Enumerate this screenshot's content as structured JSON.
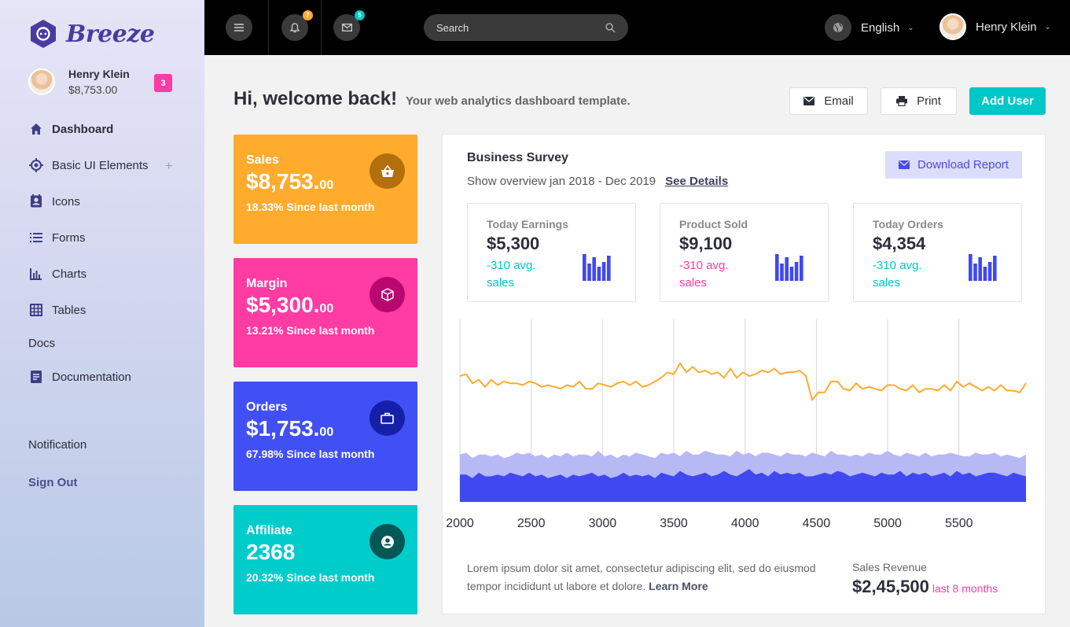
{
  "brand": {
    "name": "Breeze"
  },
  "sidebar": {
    "user": {
      "name": "Henry Klein",
      "balance": "$8,753.00",
      "badge": "3"
    },
    "items": [
      {
        "label": "Dashboard",
        "icon": "home-icon"
      },
      {
        "label": "Basic UI Elements",
        "icon": "crosshair-icon"
      },
      {
        "label": "Icons",
        "icon": "contact-card-icon"
      },
      {
        "label": "Forms",
        "icon": "list-icon"
      },
      {
        "label": "Charts",
        "icon": "bar-chart-icon"
      },
      {
        "label": "Tables",
        "icon": "table-icon"
      }
    ],
    "docs_header": "Docs",
    "documentation": "Documentation",
    "notification": "Notification",
    "signout": "Sign Out"
  },
  "topbar": {
    "notifications_count": "7",
    "messages_count": "5",
    "search_placeholder": "Search",
    "language": "English",
    "user_name": "Henry Klein"
  },
  "header": {
    "title": "Hi, welcome back!",
    "subtitle": "Your web analytics dashboard template.",
    "email_label": "Email",
    "print_label": "Print",
    "add_user_label": "Add User"
  },
  "stats": [
    {
      "label": "Sales",
      "value": "$8,753.",
      "cents": "00",
      "since": "18.33% Since last month",
      "color": "#ffab2e",
      "icon": "basket-icon"
    },
    {
      "label": "Margin",
      "value": "$5,300.",
      "cents": "00",
      "since": "13.21% Since last month",
      "color": "#ff3ba4",
      "icon": "cube-icon"
    },
    {
      "label": "Orders",
      "value": "$1,753.",
      "cents": "00",
      "since": "67.98% Since last month",
      "color": "#4050f5",
      "icon": "briefcase-icon"
    },
    {
      "label": "Affiliate",
      "value": "2368",
      "cents": "",
      "since": "20.32% Since last month",
      "color": "#00cccc",
      "icon": "user-circle-icon"
    }
  ],
  "survey": {
    "title": "Business Survey",
    "subtitle": "Show overview jan 2018 - Dec 2019",
    "see_details": "See Details",
    "download_label": "Download Report",
    "cards": [
      {
        "label": "Today Earnings",
        "value": "$5,300",
        "avg": "-310 avg. sales",
        "avg_color": "#00c7c8"
      },
      {
        "label": "Product Sold",
        "value": "$9,100",
        "avg": "-310 avg. sales",
        "avg_color": "#ff3ba4"
      },
      {
        "label": "Today Orders",
        "value": "$4,354",
        "avg": "-310 avg. sales",
        "avg_color": "#00c7c8"
      }
    ],
    "description": "Lorem ipsum dolor sit amet, consectetur adipiscing elit, sed do eiusmod tempor incididunt ut labore et dolore.",
    "learn_more": "Learn More",
    "revenue_label": "Sales Revenue",
    "revenue_value": "$2,45,500",
    "revenue_period": "last 8 months"
  },
  "chart_data": {
    "type": "line",
    "x_ticks": [
      "2000",
      "2500",
      "3000",
      "3500",
      "4000",
      "4500",
      "5000",
      "5500"
    ],
    "xlim": [
      2000,
      5970
    ],
    "ylim": [
      0,
      100
    ],
    "grid": "vertical",
    "series": [
      {
        "style": "line",
        "color": "#ffab2e",
        "values": [
          69,
          70,
          65,
          67,
          63,
          67,
          64,
          66,
          65,
          65,
          64,
          66,
          65,
          63,
          64,
          63,
          62,
          64,
          63,
          66,
          62,
          62,
          65,
          64,
          63,
          65,
          66,
          64,
          66,
          63,
          64,
          66,
          68,
          71,
          70,
          76,
          71,
          74,
          71,
          72,
          70,
          71,
          68,
          73,
          68,
          71,
          69,
          70,
          72,
          71,
          73,
          70,
          71,
          71,
          72,
          69,
          56,
          60,
          60,
          66,
          66,
          62,
          61,
          65,
          62,
          63,
          62,
          61,
          64,
          64,
          62,
          61,
          64,
          60,
          62,
          62,
          61,
          64,
          61,
          66,
          63,
          65,
          63,
          61,
          63,
          61,
          64,
          61,
          61,
          60,
          65
        ]
      },
      {
        "style": "area",
        "color": "#b7b9f5",
        "values": [
          26,
          27,
          24,
          26,
          26,
          25,
          26,
          24,
          25,
          27,
          26,
          27,
          25,
          26,
          24,
          26,
          25,
          27,
          25,
          26,
          26,
          25,
          28,
          25,
          26,
          24,
          26,
          25,
          27,
          26,
          25,
          24,
          27,
          26,
          27,
          25,
          28,
          26,
          26,
          28,
          27,
          26,
          26,
          25,
          28,
          26,
          27,
          25,
          27,
          27,
          26,
          25,
          27,
          26,
          26,
          25,
          27,
          26,
          25,
          28,
          26,
          26,
          25,
          26,
          25,
          27,
          26,
          26,
          28,
          26,
          25,
          27,
          26,
          25,
          27,
          25,
          26,
          26,
          27,
          26,
          25,
          25,
          27,
          26,
          26,
          27,
          25,
          26,
          25,
          24,
          26
        ]
      },
      {
        "style": "area",
        "color": "#4048f0",
        "values": [
          15,
          15,
          13,
          16,
          14,
          14,
          15,
          14,
          16,
          15,
          14,
          16,
          14,
          15,
          13,
          14,
          15,
          13,
          15,
          14,
          15,
          16,
          14,
          15,
          13,
          14,
          16,
          14,
          15,
          14,
          15,
          13,
          16,
          15,
          14,
          17,
          15,
          14,
          15,
          16,
          14,
          15,
          17,
          15,
          14,
          16,
          18,
          15,
          16,
          14,
          17,
          15,
          16,
          15,
          16,
          14,
          14,
          15,
          16,
          15,
          17,
          16,
          14,
          15,
          16,
          15,
          14,
          16,
          15,
          15,
          17,
          14,
          16,
          15,
          16,
          14,
          15,
          16,
          14,
          17,
          15,
          16,
          14,
          15,
          16,
          16,
          15,
          14,
          16,
          15,
          14
        ]
      }
    ]
  }
}
